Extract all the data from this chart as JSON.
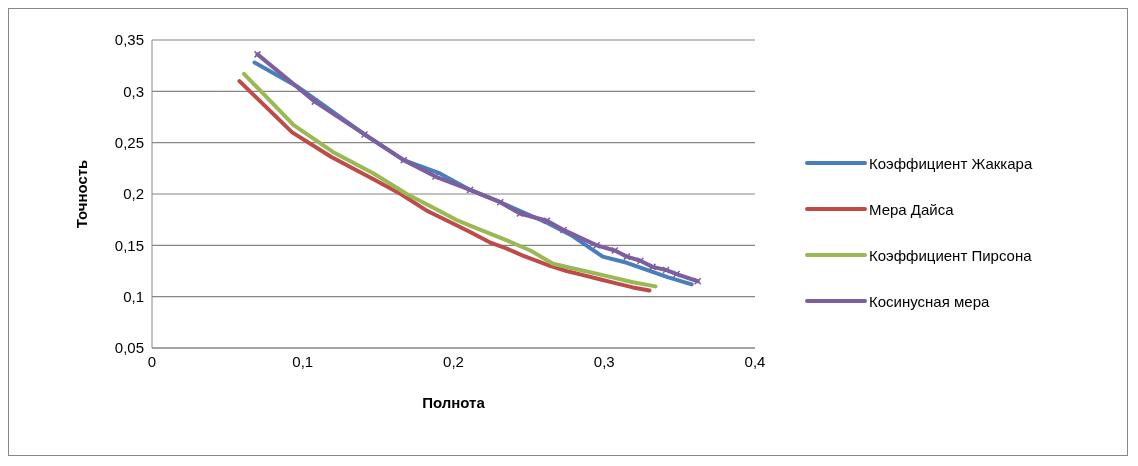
{
  "chart_data": {
    "type": "line",
    "xlabel": "Полнота",
    "ylabel": "Точность",
    "xlim": [
      0,
      0.4
    ],
    "xticks": [
      {
        "value": 0,
        "label": "0"
      },
      {
        "value": 0.1,
        "label": "0,1"
      },
      {
        "value": 0.2,
        "label": "0,2"
      },
      {
        "value": 0.3,
        "label": "0,3"
      },
      {
        "value": 0.4,
        "label": "0,4"
      }
    ],
    "ylim": [
      0.05,
      0.35
    ],
    "yticks": [
      {
        "value": 0.05,
        "label": "0,05"
      },
      {
        "value": 0.1,
        "label": "0,1"
      },
      {
        "value": 0.15,
        "label": "0,15"
      },
      {
        "value": 0.2,
        "label": "0,2"
      },
      {
        "value": 0.25,
        "label": "0,25"
      },
      {
        "value": 0.3,
        "label": "0,3"
      },
      {
        "value": 0.35,
        "label": "0,35"
      }
    ],
    "grid": "y",
    "legend": "right",
    "line_style": "solid",
    "series": [
      {
        "name": "Коэффициент Жаккара",
        "color": "#4a7ebb",
        "marker": "none",
        "x": [
          0.068,
          0.096,
          0.141,
          0.167,
          0.191,
          0.211,
          0.231,
          0.262,
          0.279,
          0.299,
          0.315,
          0.342,
          0.358
        ],
        "values": [
          0.328,
          0.305,
          0.258,
          0.233,
          0.22,
          0.204,
          0.192,
          0.172,
          0.159,
          0.139,
          0.133,
          0.119,
          0.112
        ]
      },
      {
        "name": "Мера Дайса",
        "color": "#be4b48",
        "marker": "none",
        "x": [
          0.058,
          0.093,
          0.119,
          0.146,
          0.165,
          0.182,
          0.2,
          0.211,
          0.224,
          0.235,
          0.246,
          0.257,
          0.264,
          0.275,
          0.286,
          0.297,
          0.308,
          0.319,
          0.33
        ],
        "values": [
          0.31,
          0.26,
          0.236,
          0.215,
          0.2,
          0.184,
          0.171,
          0.163,
          0.153,
          0.147,
          0.14,
          0.134,
          0.13,
          0.125,
          0.121,
          0.117,
          0.113,
          0.109,
          0.106
        ]
      },
      {
        "name": "Коэффициент Пирсона",
        "color": "#98b954",
        "marker": "none",
        "x": [
          0.061,
          0.094,
          0.12,
          0.147,
          0.169,
          0.186,
          0.203,
          0.213,
          0.235,
          0.251,
          0.266,
          0.284,
          0.302,
          0.319,
          0.334
        ],
        "values": [
          0.317,
          0.267,
          0.241,
          0.22,
          0.2,
          0.187,
          0.174,
          0.168,
          0.155,
          0.145,
          0.132,
          0.126,
          0.12,
          0.114,
          0.11
        ]
      },
      {
        "name": "Косинусная мера",
        "color": "#7d5fa0",
        "marker": "cross",
        "x": [
          0.07,
          0.108,
          0.141,
          0.167,
          0.188,
          0.211,
          0.231,
          0.244,
          0.262,
          0.273,
          0.295,
          0.307,
          0.315,
          0.324,
          0.332,
          0.341,
          0.348,
          0.362
        ],
        "values": [
          0.336,
          0.29,
          0.258,
          0.233,
          0.217,
          0.204,
          0.192,
          0.181,
          0.174,
          0.165,
          0.15,
          0.145,
          0.139,
          0.135,
          0.129,
          0.126,
          0.122,
          0.115
        ]
      }
    ]
  }
}
